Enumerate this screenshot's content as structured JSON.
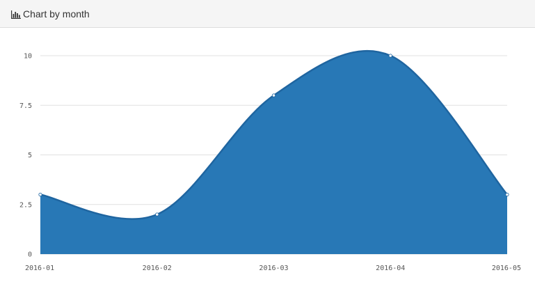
{
  "panel": {
    "title": "Chart by month",
    "icon": "bar-chart-icon"
  },
  "chart_data": {
    "type": "area",
    "title": "",
    "xlabel": "",
    "ylabel": "",
    "categories": [
      "2016-01",
      "2016-02",
      "2016-03",
      "2016-04",
      "2016-05"
    ],
    "series": [
      {
        "values": [
          3,
          2,
          8,
          10,
          3
        ],
        "color": "#2878b6"
      }
    ],
    "yticks": [
      0,
      2.5,
      5,
      7.5,
      10
    ],
    "ytick_labels": [
      "0",
      "2.5",
      "5",
      "7.5",
      "10"
    ],
    "ylim": [
      0,
      10
    ],
    "grid": true,
    "smooth": true,
    "colors": {
      "fill": "#2878b6",
      "line": "#1f65a0",
      "grid": "#e0e0e0"
    }
  }
}
